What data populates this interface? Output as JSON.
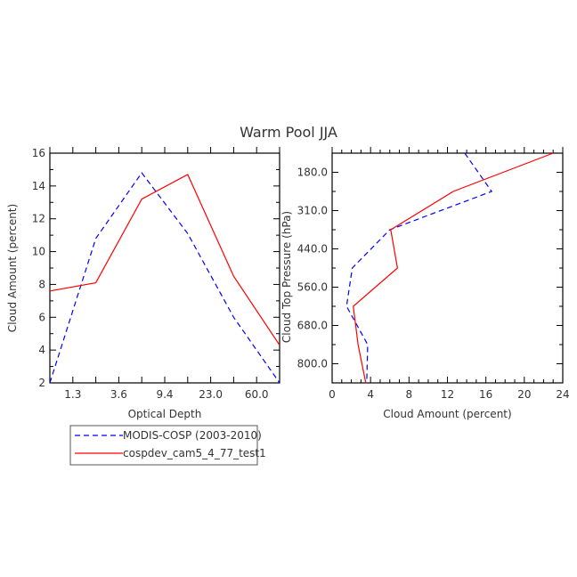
{
  "figure": {
    "title": "Warm Pool JJA"
  },
  "legend": {
    "entries": [
      {
        "label": "MODIS-COSP (2003-2010)",
        "color": "#0000ff",
        "dash": "dashed"
      },
      {
        "label": "cospdev_cam5_4_77_test1",
        "color": "#ff0000",
        "dash": "solid"
      }
    ]
  },
  "chart_data": [
    {
      "type": "line",
      "title": "",
      "xlabel": "Optical Depth",
      "ylabel": "Cloud Amount (percent)",
      "x_tick_labels": [
        "1.3",
        "3.6",
        "9.4",
        "23.0",
        "60.0"
      ],
      "y_ticks": [
        2,
        4,
        6,
        8,
        10,
        12,
        14,
        16
      ],
      "ylim": [
        2,
        16
      ],
      "grid": false,
      "series": [
        {
          "name": "MODIS-COSP (2003-2010)",
          "color": "#0000ff",
          "dash": "dashed",
          "x": [
            0,
            1,
            2,
            3,
            4,
            5
          ],
          "y": [
            2.0,
            10.8,
            14.8,
            11.1,
            6.0,
            2.0
          ]
        },
        {
          "name": "cospdev_cam5_4_77_test1",
          "color": "#ff0000",
          "dash": "solid",
          "x": [
            0,
            1,
            2,
            3,
            4,
            5
          ],
          "y": [
            7.6,
            8.1,
            13.2,
            14.7,
            8.5,
            4.3
          ]
        }
      ]
    },
    {
      "type": "line",
      "title": "",
      "xlabel": "Cloud Amount (percent)",
      "ylabel": "Cloud Top Pressure (hPa)",
      "x_ticks": [
        0,
        4,
        8,
        12,
        16,
        20,
        24
      ],
      "xlim": [
        0,
        24
      ],
      "y_tick_labels": [
        "180.0",
        "310.0",
        "440.0",
        "560.0",
        "680.0",
        "800.0"
      ],
      "y_tick_positions": [
        0.5,
        1.5,
        2.5,
        3.5,
        4.5,
        5.5
      ],
      "ylim": [
        0,
        6
      ],
      "y_inverted": true,
      "grid": false,
      "series": [
        {
          "name": "MODIS-COSP (2003-2010)",
          "color": "#0000ff",
          "dash": "dashed",
          "x": [
            13.8,
            16.6,
            6.0,
            2.1,
            1.5,
            3.7,
            3.6
          ],
          "y": [
            0,
            1,
            2,
            3,
            4,
            5,
            6
          ]
        },
        {
          "name": "cospdev_cam5_4_77_test1",
          "color": "#ff0000",
          "dash": "solid",
          "x": [
            23.0,
            12.6,
            6.1,
            6.8,
            2.2,
            2.7,
            3.5
          ],
          "y": [
            0,
            1,
            2,
            3,
            4,
            5,
            6
          ]
        }
      ]
    }
  ]
}
